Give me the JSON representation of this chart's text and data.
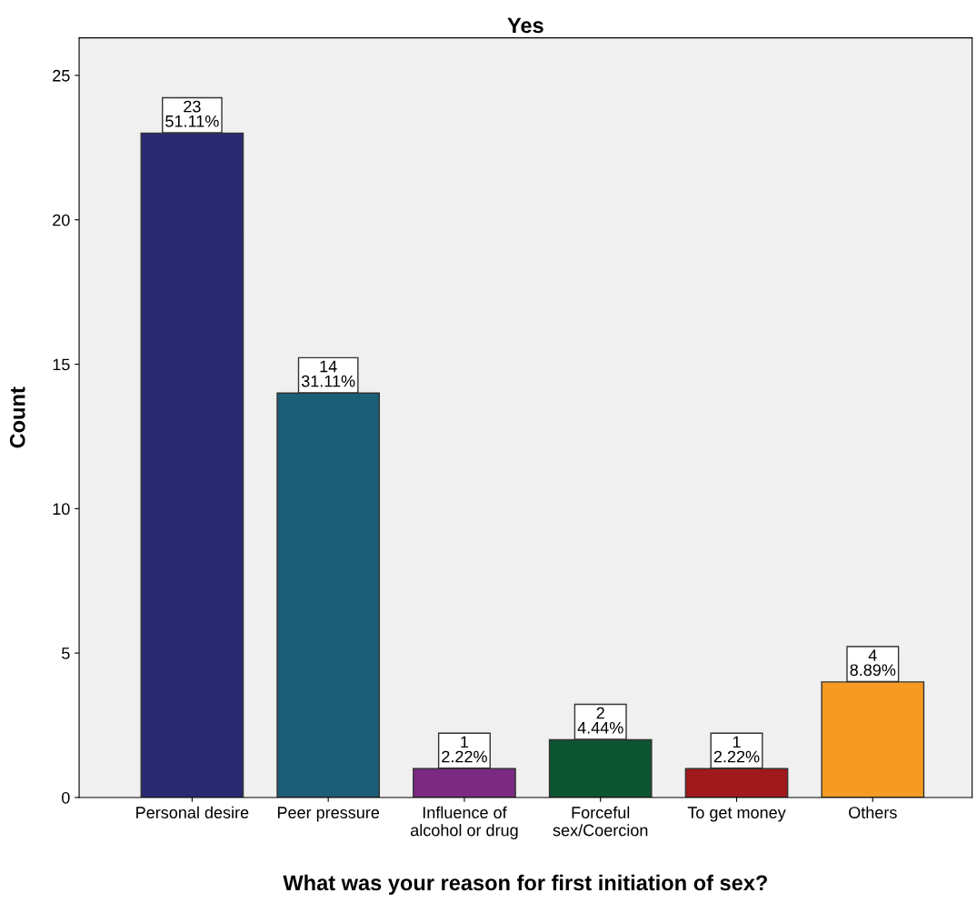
{
  "chart_data": {
    "type": "bar",
    "title": "Yes",
    "xlabel": "What was your reason for first initiation of sex?",
    "ylabel": "Count",
    "categories": [
      "Personal desire",
      "Peer pressure",
      "Influence of\nalcohol or drug",
      "Forceful\nsex/Coercion",
      "To get money",
      "Others"
    ],
    "values": [
      23,
      14,
      1,
      2,
      1,
      4
    ],
    "colors": [
      "#2a2a72",
      "#1c5e75",
      "#7b2a82",
      "#0d5430",
      "#a0191d",
      "#f59a23"
    ],
    "value_labels": [
      "23\n51.11%",
      "14\n31.11%",
      "1\n2.22%",
      "2\n4.44%",
      "1\n2.22%",
      "4\n8.89%"
    ],
    "ylim": [
      0,
      26.3
    ],
    "yticks": [
      0,
      5,
      10,
      15,
      20,
      25
    ],
    "grid": false,
    "legend": false
  }
}
